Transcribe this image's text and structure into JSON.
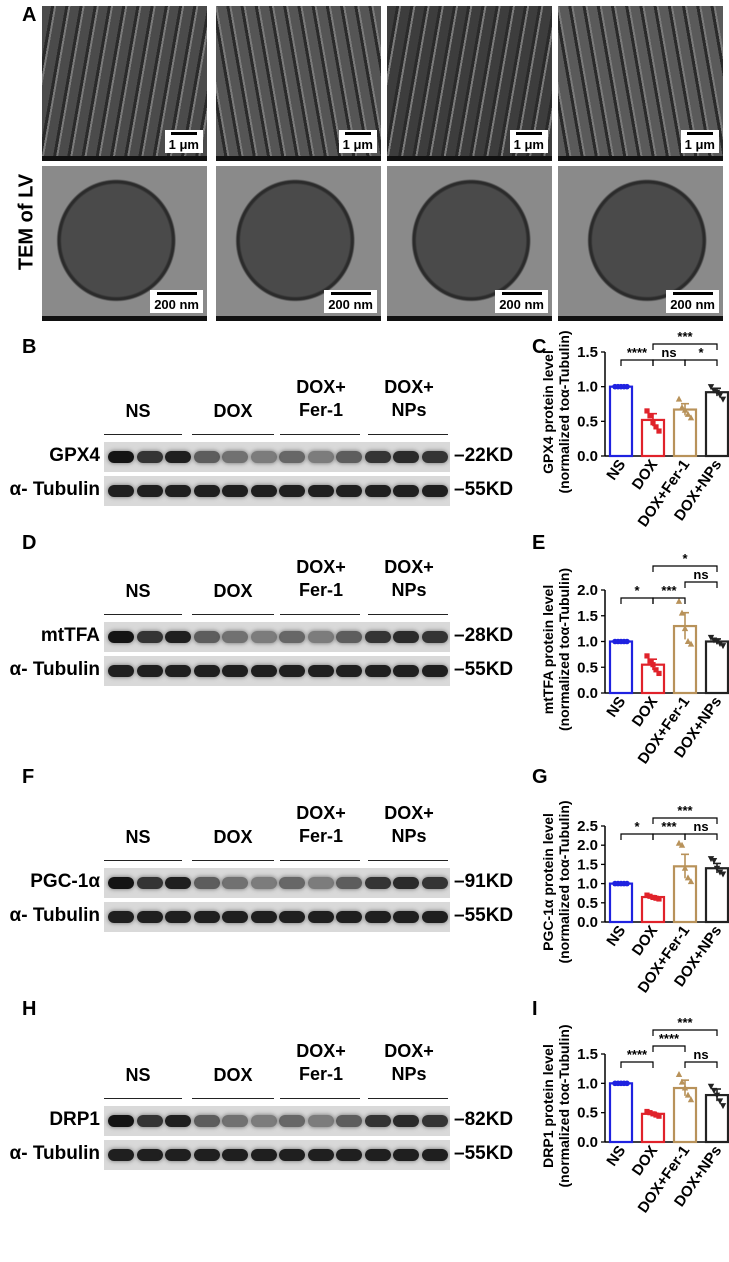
{
  "panel_letters": {
    "A": "A",
    "B": "B",
    "C": "C",
    "D": "D",
    "E": "E",
    "F": "F",
    "G": "G",
    "H": "H",
    "I": "I"
  },
  "tem": {
    "side_label": "TEM of LV",
    "top_scale": "1 μm",
    "bottom_scale": "200 nm"
  },
  "blot_groups": {
    "ns": "NS",
    "dox": "DOX",
    "fer1_line1": "DOX+",
    "fer1_line2": "Fer-1",
    "nps_line1": "DOX+",
    "nps_line2": "NPs"
  },
  "blots": [
    {
      "id": "B",
      "target": "GPX4",
      "target_kd": "22KD",
      "loading": "α- Tubulin",
      "loading_kd": "55KD"
    },
    {
      "id": "D",
      "target": "mtTFA",
      "target_kd": "28KD",
      "loading": "α- Tubulin",
      "loading_kd": "55KD"
    },
    {
      "id": "F",
      "target": "PGC-1α",
      "target_kd": "91KD",
      "loading": "α- Tubulin",
      "loading_kd": "55KD"
    },
    {
      "id": "H",
      "target": "DRP1",
      "target_kd": "82KD",
      "loading": "α- Tubulin",
      "loading_kd": "55KD"
    }
  ],
  "chart_data": [
    {
      "panel": "C",
      "type": "bar",
      "categories": [
        "NS",
        "DOX",
        "DOX+Fer-1",
        "DOX+NPs"
      ],
      "values": [
        1.0,
        0.52,
        0.67,
        0.92
      ],
      "ylabel_line1": "GPX4 protein level",
      "ylabel_line2": "(normalized toα-Tubulin)",
      "ylim": [
        0,
        1.5
      ],
      "yticks": [
        "0.0",
        "0.5",
        "1.0",
        "1.5"
      ],
      "ytick_vals": [
        0,
        0.5,
        1.0,
        1.5
      ],
      "colors": [
        "#1f22e0",
        "#e0222a",
        "#b8925a",
        "#222222"
      ],
      "points": [
        [
          1,
          1,
          1,
          1,
          1
        ],
        [
          0.65,
          0.58,
          0.48,
          0.42,
          0.36
        ],
        [
          0.82,
          0.7,
          0.66,
          0.6,
          0.55
        ],
        [
          1.0,
          0.95,
          0.92,
          0.88,
          0.82
        ]
      ],
      "significance": [
        {
          "pair": [
            0,
            1
          ],
          "label": "****",
          "level": 0
        },
        {
          "pair": [
            1,
            2
          ],
          "label": "ns",
          "level": 0
        },
        {
          "pair": [
            2,
            3
          ],
          "label": "*",
          "level": 0
        },
        {
          "pair": [
            1,
            3
          ],
          "label": "***",
          "level": 1
        }
      ]
    },
    {
      "panel": "E",
      "type": "bar",
      "categories": [
        "NS",
        "DOX",
        "DOX+Fer-1",
        "DOX+NPs"
      ],
      "values": [
        1.0,
        0.55,
        1.3,
        1.0
      ],
      "ylabel_line1": "mtTFA protein level",
      "ylabel_line2": "(normalized toα-Tubulin)",
      "ylim": [
        0,
        2.0
      ],
      "yticks": [
        "0.0",
        "0.5",
        "1.0",
        "1.5",
        "2.0"
      ],
      "ytick_vals": [
        0,
        0.5,
        1.0,
        1.5,
        2.0
      ],
      "colors": [
        "#1f22e0",
        "#e0222a",
        "#b8925a",
        "#222222"
      ],
      "points": [
        [
          1,
          1,
          1,
          1,
          1
        ],
        [
          0.72,
          0.62,
          0.55,
          0.45,
          0.38
        ],
        [
          1.78,
          1.55,
          1.25,
          1.0,
          0.95
        ],
        [
          1.08,
          1.03,
          1.0,
          0.96,
          0.92
        ]
      ],
      "significance": [
        {
          "pair": [
            0,
            1
          ],
          "label": "*",
          "level": 0
        },
        {
          "pair": [
            1,
            2
          ],
          "label": "***",
          "level": 0
        },
        {
          "pair": [
            2,
            3
          ],
          "label": "ns",
          "level": 1
        },
        {
          "pair": [
            1,
            3
          ],
          "label": "*",
          "level": 2
        }
      ]
    },
    {
      "panel": "G",
      "type": "bar",
      "categories": [
        "NS",
        "DOX",
        "DOX+Fer-1",
        "DOX+NPs"
      ],
      "values": [
        1.0,
        0.65,
        1.45,
        1.4
      ],
      "ylabel_line1": "PGC-1α protein level",
      "ylabel_line2": "(normalized toα-Tubulin)",
      "ylim": [
        0,
        2.5
      ],
      "yticks": [
        "0.0",
        "0.5",
        "1.0",
        "1.5",
        "2.0",
        "2.5"
      ],
      "ytick_vals": [
        0,
        0.5,
        1.0,
        1.5,
        2.0,
        2.5
      ],
      "colors": [
        "#1f22e0",
        "#e0222a",
        "#b8925a",
        "#222222"
      ],
      "points": [
        [
          1,
          1,
          1,
          1,
          1
        ],
        [
          0.7,
          0.67,
          0.64,
          0.62,
          0.6
        ],
        [
          2.05,
          2.0,
          1.4,
          1.15,
          1.05
        ],
        [
          1.65,
          1.6,
          1.4,
          1.3,
          1.25
        ]
      ],
      "significance": [
        {
          "pair": [
            0,
            1
          ],
          "label": "*",
          "level": 0
        },
        {
          "pair": [
            1,
            2
          ],
          "label": "***",
          "level": 0
        },
        {
          "pair": [
            2,
            3
          ],
          "label": "ns",
          "level": 0
        },
        {
          "pair": [
            1,
            3
          ],
          "label": "***",
          "level": 1
        }
      ]
    },
    {
      "panel": "I",
      "type": "bar",
      "categories": [
        "NS",
        "DOX",
        "DOX+Fer-1",
        "DOX+NPs"
      ],
      "values": [
        1.0,
        0.48,
        0.92,
        0.8
      ],
      "ylabel_line1": "DRP1 protein level",
      "ylabel_line2": "(normalized toα-Tubulin)",
      "ylim": [
        0,
        1.5
      ],
      "yticks": [
        "0.0",
        "0.5",
        "1.0",
        "1.5"
      ],
      "ytick_vals": [
        0,
        0.5,
        1.0,
        1.5
      ],
      "colors": [
        "#1f22e0",
        "#e0222a",
        "#b8925a",
        "#222222"
      ],
      "points": [
        [
          1,
          1,
          1,
          1,
          1
        ],
        [
          0.52,
          0.5,
          0.48,
          0.46,
          0.44
        ],
        [
          1.15,
          1.02,
          0.92,
          0.8,
          0.72
        ],
        [
          0.95,
          0.88,
          0.8,
          0.7,
          0.62
        ]
      ],
      "significance": [
        {
          "pair": [
            0,
            1
          ],
          "label": "****",
          "level": 0
        },
        {
          "pair": [
            2,
            3
          ],
          "label": "ns",
          "level": 0
        },
        {
          "pair": [
            1,
            2
          ],
          "label": "****",
          "level": 1
        },
        {
          "pair": [
            1,
            3
          ],
          "label": "***",
          "level": 2
        }
      ]
    }
  ]
}
